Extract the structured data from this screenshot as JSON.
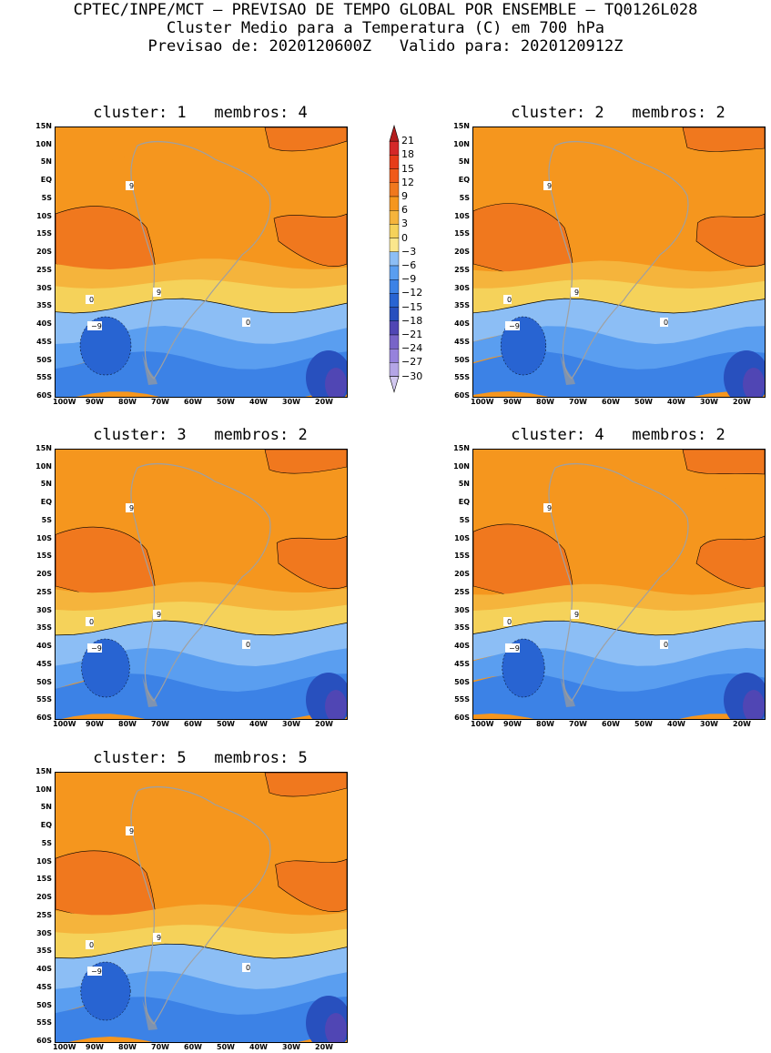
{
  "header": {
    "line1": "CPTEC/INPE/MCT – PREVISAO DE TEMPO GLOBAL POR ENSEMBLE – TQ0126L028",
    "line2": "Cluster Medio para a Temperatura (C) em 700 hPa",
    "line3": "Previsao de: 2020120600Z   Valido para: 2020120912Z"
  },
  "panels": [
    {
      "title": "cluster: 1   membros: 4"
    },
    {
      "title": "cluster: 2   membros: 2"
    },
    {
      "title": "cluster: 3   membros: 2"
    },
    {
      "title": "cluster: 4   membros: 2"
    },
    {
      "title": "cluster: 5   membros: 5"
    }
  ],
  "lat_labels": [
    "15N",
    "10N",
    "5N",
    "EQ",
    "5S",
    "10S",
    "15S",
    "20S",
    "25S",
    "30S",
    "35S",
    "40S",
    "45S",
    "50S",
    "55S",
    "60S"
  ],
  "lon_labels": [
    "100W",
    "90W",
    "80W",
    "70W",
    "60W",
    "50W",
    "40W",
    "30W",
    "20W"
  ],
  "colorbar": {
    "levels": [
      "21",
      "18",
      "15",
      "12",
      "9",
      "6",
      "3",
      "0",
      "−3",
      "−6",
      "−9",
      "−12",
      "−15",
      "−18",
      "−21",
      "−24",
      "−27",
      "−30"
    ],
    "colors": [
      "#b41e1e",
      "#d42828",
      "#e63c19",
      "#f05a19",
      "#f0781e",
      "#f5961e",
      "#f5b43c",
      "#f5d25a",
      "#fae68c",
      "#8cbef5",
      "#5a9ef0",
      "#3c82e6",
      "#2864d2",
      "#2850be",
      "#5046b4",
      "#7864c8",
      "#9682dc",
      "#b4a5e6",
      "#d2c8f0"
    ]
  },
  "contour_labels": {
    "nine": "9",
    "zero": "0",
    "minus_nine": "−9"
  },
  "chart_data": {
    "type": "heatmap",
    "variable": "Temperatura (C) em 700 hPa",
    "lat_range": [
      "60S",
      "15N"
    ],
    "lon_range": [
      "100W",
      "15W"
    ],
    "panels": [
      {
        "cluster": 1,
        "membros": 4
      },
      {
        "cluster": 2,
        "membros": 2
      },
      {
        "cluster": 3,
        "membros": 2
      },
      {
        "cluster": 4,
        "membros": 2
      },
      {
        "cluster": 5,
        "membros": 5
      }
    ]
  }
}
